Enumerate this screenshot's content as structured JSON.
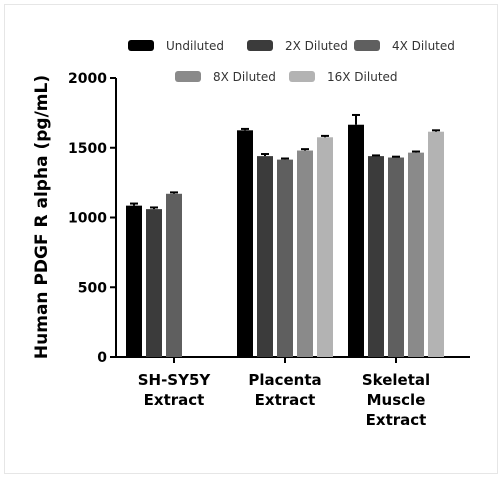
{
  "chart_data": {
    "type": "bar",
    "title": "",
    "xlabel": "",
    "ylabel": "Human PDGF R alpha (pg/mL)",
    "ylim": [
      0,
      2000
    ],
    "yticks": [
      0,
      500,
      1000,
      1500,
      2000
    ],
    "categories": [
      [
        "SH-SY5Y",
        "Extract"
      ],
      [
        "Placenta",
        "Extract"
      ],
      [
        "Skeletal",
        "Muscle",
        "Extract"
      ]
    ],
    "legend_position": "top",
    "series": [
      {
        "name": "Undiluted",
        "color": "#000000",
        "values": [
          1085,
          1625,
          1665
        ],
        "errors": [
          15,
          10,
          70
        ]
      },
      {
        "name": "2X Diluted",
        "color": "#3b3b3b",
        "values": [
          1060,
          1440,
          1440
        ],
        "errors": [
          12,
          15,
          5
        ]
      },
      {
        "name": "4X Diluted",
        "color": "#5f5f5f",
        "values": [
          1170,
          1415,
          1430
        ],
        "errors": [
          10,
          8,
          6
        ]
      },
      {
        "name": "8X Diluted",
        "color": "#8a8a8a",
        "values": [
          null,
          1480,
          1465
        ],
        "errors": [
          0,
          10,
          8
        ]
      },
      {
        "name": "16X Diluted",
        "color": "#b3b3b3",
        "values": [
          null,
          1575,
          1615
        ],
        "errors": [
          0,
          10,
          10
        ]
      }
    ]
  }
}
